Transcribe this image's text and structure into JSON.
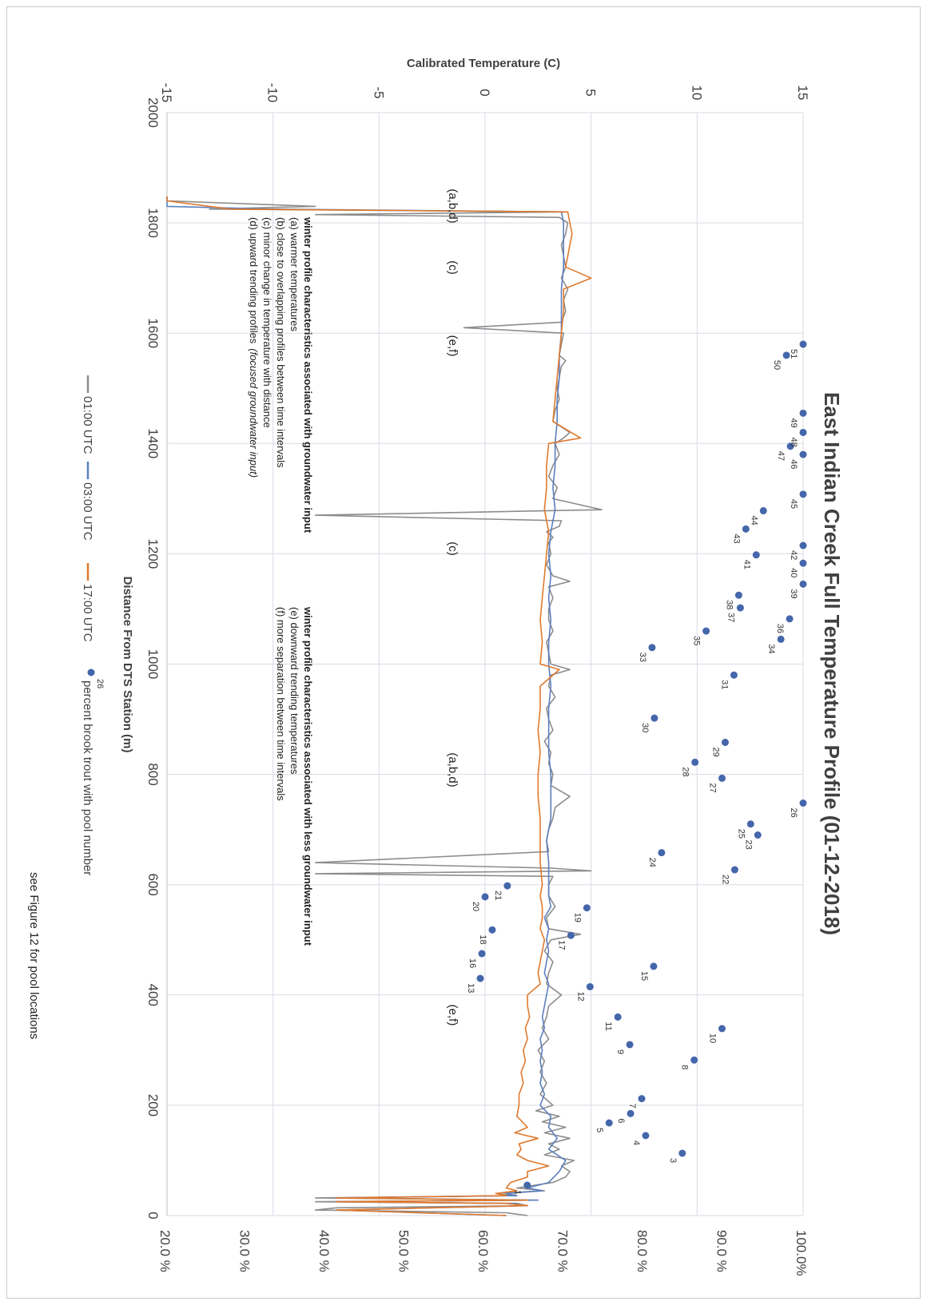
{
  "chart_data": {
    "type": "line",
    "title": "East Indian Creek Full Temperature Profile (01-12-2018)",
    "xlabel": "Distance From DTS Station (m)",
    "ylabel": "Calibrated Temperature (C)",
    "xlim": [
      0,
      2000
    ],
    "ylim": [
      -15,
      15
    ],
    "y2lim": [
      0.2,
      1.0
    ],
    "x_ticks": [
      "0",
      "200",
      "400",
      "600",
      "800",
      "1000",
      "1200",
      "1400",
      "1600",
      "1800",
      "2000"
    ],
    "y_ticks": [
      "-15",
      "-10",
      "-5",
      "0",
      "5",
      "10",
      "15"
    ],
    "y2_ticks": [
      "20.0 %",
      "30.0 %",
      "40.0 %",
      "50.0 %",
      "60.0 %",
      "70.0 %",
      "80.0 %",
      "90.0 %",
      "100.0%"
    ],
    "grid": true,
    "legend_position": "bottom",
    "series": [
      {
        "name": "01:00 UTC",
        "color": "#8c8c8c",
        "x": [
          0,
          5,
          10,
          14,
          18,
          22,
          25,
          28,
          32,
          36,
          40,
          45,
          50,
          60,
          70,
          80,
          90,
          100,
          110,
          120,
          130,
          140,
          150,
          160,
          170,
          180,
          190,
          200,
          220,
          240,
          260,
          280,
          300,
          320,
          340,
          360,
          380,
          400,
          420,
          440,
          460,
          480,
          500,
          510,
          520,
          540,
          560,
          580,
          600,
          615,
          620,
          625,
          630,
          640,
          660,
          680,
          700,
          720,
          740,
          760,
          780,
          800,
          820,
          840,
          860,
          880,
          900,
          920,
          940,
          960,
          980,
          990,
          1000,
          1020,
          1040,
          1060,
          1080,
          1100,
          1120,
          1140,
          1150,
          1160,
          1180,
          1200,
          1220,
          1230,
          1240,
          1250,
          1260,
          1270,
          1280,
          1300,
          1320,
          1340,
          1360,
          1380,
          1400,
          1410,
          1420,
          1440,
          1460,
          1480,
          1500,
          1520,
          1540,
          1550,
          1560,
          1580,
          1600,
          1610,
          1620,
          1640,
          1660,
          1680,
          1700,
          1720,
          1740,
          1760,
          1780,
          1800,
          1810,
          1815,
          1820,
          1825,
          1830,
          1840,
          1845,
          1848
        ],
        "y": [
          2.0,
          1.0,
          -8.0,
          -7.0,
          2.0,
          1.0,
          -8.0,
          2.0,
          -8.0,
          1.5,
          0.5,
          2.8,
          1.5,
          3.2,
          3.8,
          4.0,
          3.6,
          4.2,
          2.8,
          3.5,
          3.0,
          4.0,
          2.8,
          3.8,
          2.7,
          3.5,
          2.4,
          3.2,
          2.6,
          2.9,
          2.6,
          2.8,
          2.5,
          3.0,
          2.7,
          2.9,
          3.0,
          3.6,
          2.9,
          3.0,
          3.2,
          2.8,
          3.1,
          4.5,
          3.0,
          2.9,
          3.3,
          3.0,
          3.0,
          3.2,
          -8.0,
          5.0,
          3.1,
          -8.0,
          3.0,
          2.9,
          3.0,
          3.2,
          3.3,
          4.0,
          3.1,
          3.2,
          3.0,
          3.1,
          2.8,
          3.2,
          3.0,
          2.9,
          3.3,
          3.0,
          3.1,
          4.0,
          3.1,
          3.0,
          2.9,
          3.2,
          3.0,
          3.0,
          3.2,
          3.0,
          4.0,
          3.2,
          2.9,
          3.1,
          3.0,
          3.2,
          2.9,
          3.5,
          3.6,
          -8.0,
          5.5,
          3.2,
          3.4,
          3.0,
          3.2,
          3.5,
          3.3,
          3.7,
          4.0,
          3.2,
          3.3,
          3.5,
          3.4,
          3.5,
          3.6,
          3.8,
          3.5,
          3.6,
          3.7,
          -1.0,
          3.6,
          3.8,
          3.7,
          3.9,
          3.6,
          3.8,
          3.7,
          3.6,
          3.8,
          3.9,
          3.5,
          -8.0,
          3.8,
          -13.0,
          -8.0,
          -15.0,
          -15.0,
          -15.0
        ]
      },
      {
        "name": "03:00 UTC",
        "color": "#5b7fbf",
        "x": [
          0,
          10,
          18,
          22,
          25,
          28,
          32,
          36,
          40,
          45,
          50,
          60,
          80,
          100,
          120,
          140,
          160,
          180,
          200,
          220,
          240,
          260,
          280,
          300,
          320,
          340,
          360,
          380,
          400,
          420,
          440,
          460,
          480,
          500,
          520,
          540,
          560,
          580,
          600,
          640,
          680,
          720,
          760,
          800,
          840,
          880,
          920,
          960,
          1000,
          1040,
          1080,
          1120,
          1160,
          1200,
          1240,
          1280,
          1320,
          1360,
          1400,
          1440,
          1480,
          1520,
          1560,
          1600,
          1640,
          1680,
          1720,
          1760,
          1800,
          1820,
          1825,
          1830,
          1840,
          1848
        ],
        "y": [
          1.0,
          -7.0,
          2.0,
          1.5,
          -7.0,
          2.5,
          -7.0,
          1.5,
          1.0,
          2.7,
          2.0,
          3.0,
          3.5,
          3.8,
          3.0,
          3.4,
          3.0,
          3.1,
          2.6,
          2.8,
          2.6,
          2.7,
          2.6,
          2.7,
          2.6,
          2.8,
          2.7,
          2.8,
          2.9,
          3.0,
          2.8,
          2.9,
          3.0,
          2.9,
          3.0,
          2.8,
          3.1,
          3.0,
          3.0,
          3.0,
          2.9,
          3.1,
          3.1,
          3.1,
          3.0,
          3.0,
          3.0,
          3.1,
          3.0,
          3.0,
          3.1,
          3.0,
          3.1,
          3.0,
          3.1,
          3.3,
          3.2,
          3.3,
          3.3,
          3.4,
          3.4,
          3.5,
          3.5,
          3.6,
          3.6,
          3.6,
          3.7,
          3.7,
          3.7,
          3.6,
          -10.0,
          -15.0,
          -15.0,
          -15.0
        ]
      },
      {
        "name": "17:00 UTC",
        "color": "#e07a2e",
        "x": [
          0,
          10,
          18,
          22,
          25,
          28,
          32,
          36,
          40,
          45,
          50,
          60,
          70,
          80,
          90,
          100,
          110,
          120,
          130,
          140,
          150,
          160,
          180,
          200,
          220,
          240,
          260,
          280,
          300,
          320,
          340,
          360,
          380,
          400,
          420,
          440,
          460,
          480,
          500,
          520,
          540,
          560,
          580,
          600,
          640,
          680,
          720,
          760,
          800,
          840,
          880,
          920,
          960,
          990,
          1000,
          1040,
          1080,
          1120,
          1160,
          1200,
          1240,
          1280,
          1320,
          1360,
          1400,
          1410,
          1440,
          1480,
          1520,
          1560,
          1600,
          1640,
          1680,
          1700,
          1720,
          1740,
          1760,
          1780,
          1800,
          1820,
          1825,
          1830,
          1840,
          1848
        ],
        "y": [
          1.0,
          -7.0,
          2.0,
          1.0,
          -7.0,
          2.0,
          -7.0,
          1.0,
          0.5,
          1.5,
          1.0,
          1.2,
          2.0,
          2.0,
          3.0,
          2.0,
          1.5,
          1.7,
          1.6,
          2.5,
          1.4,
          2.0,
          1.5,
          1.6,
          1.6,
          1.8,
          1.7,
          1.9,
          1.8,
          2.0,
          1.9,
          2.1,
          2.0,
          2.0,
          2.6,
          2.5,
          2.6,
          2.7,
          2.8,
          2.6,
          2.7,
          2.7,
          2.6,
          2.7,
          2.6,
          2.6,
          2.6,
          2.5,
          2.5,
          2.6,
          2.5,
          2.6,
          2.6,
          3.5,
          2.6,
          2.7,
          2.6,
          2.7,
          2.8,
          2.9,
          3.0,
          2.8,
          2.9,
          2.9,
          3.0,
          4.5,
          3.2,
          3.3,
          3.4,
          3.5,
          3.6,
          3.7,
          3.7,
          5.0,
          3.8,
          3.9,
          4.0,
          4.1,
          4.0,
          3.9,
          -12.0,
          -13.0,
          -15.0,
          -15.0
        ]
      },
      {
        "name": "percent brook trout with pool number",
        "color": "#4466aa",
        "axis": "secondary",
        "x": [
          55,
          113,
          145,
          168,
          185,
          212,
          282,
          310,
          339,
          360,
          415,
          430,
          452,
          475,
          508,
          518,
          558,
          578,
          598,
          627,
          658,
          690,
          710,
          748,
          793,
          822,
          858,
          902,
          980,
          1030,
          1045,
          1060,
          1082,
          1102,
          1125,
          1145,
          1183,
          1198,
          1215,
          1245,
          1278,
          1308,
          1380,
          1395,
          1420,
          1455,
          1560,
          1580
        ],
        "y": [
          0.653,
          0.848,
          0.802,
          0.756,
          0.783,
          0.797,
          0.863,
          0.782,
          0.898,
          0.767,
          0.732,
          0.594,
          0.812,
          0.596,
          0.708,
          0.609,
          0.728,
          0.6,
          0.628,
          0.914,
          0.822,
          0.943,
          0.934,
          1.0,
          0.898,
          0.864,
          0.902,
          0.813,
          0.913,
          0.81,
          0.972,
          0.878,
          0.983,
          0.921,
          0.919,
          1.0,
          1.0,
          0.941,
          1.0,
          0.928,
          0.95,
          1.0,
          1.0,
          0.984,
          1.0,
          1.0,
          0.979,
          1.0
        ],
        "labels": [
          "1",
          "3",
          "4",
          "5",
          "6",
          "7",
          "8",
          "9",
          "10",
          "11",
          "12",
          "13",
          "15",
          "16",
          "17",
          "18",
          "19",
          "20",
          "21",
          "22",
          "24",
          "23",
          "25",
          "26",
          "27",
          "28",
          "29",
          "30",
          "31",
          "33",
          "34",
          "35",
          "36",
          "37",
          "38",
          "39",
          "40",
          "41",
          "42",
          "43",
          "44",
          "45",
          "46",
          "47",
          "48",
          "49",
          "50",
          "51"
        ]
      }
    ],
    "annotations": {
      "region_labels": [
        "(e,f)",
        "(a,b,d)",
        "(c)",
        "(e,f)",
        "(c)",
        "(a,b,d)"
      ],
      "high_gw_heading": "winter profile characteristics associated with groundwater input",
      "high_gw_items": [
        "(a) warmer temperatures",
        "(b) close to overlapping profiles between time intervals",
        "(c)  minor change in temperature with distance",
        "(d)  upward trending profiles"
      ],
      "high_gw_italic": "(focused groundwater input)",
      "low_gw_heading": "winter profile characteristics associated with less groundwater input",
      "low_gw_items": [
        "(e) downward trending temperatures",
        "(f) more separation between time intervals"
      ],
      "legend_example_number": "26",
      "caption": "see Figure 12 for pool locations"
    }
  }
}
